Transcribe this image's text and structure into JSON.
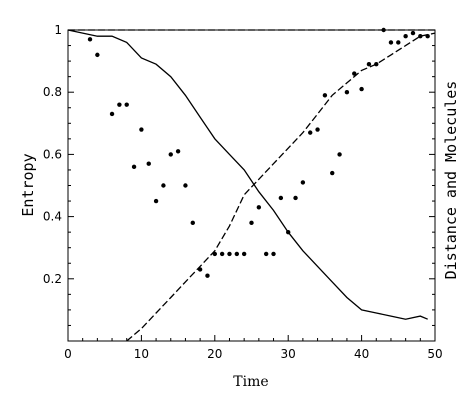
{
  "chart_data": {
    "type": "line",
    "xlabel": "Time",
    "ylabel": "Entropy",
    "ylabel_right": "Distance and Molecules",
    "xlim": [
      0,
      50
    ],
    "ylim": [
      0,
      1
    ],
    "xticks": [
      0,
      10,
      20,
      30,
      40,
      50
    ],
    "yticks": [
      0.2,
      0.4,
      0.6,
      0.8,
      1
    ],
    "ytick_labels": [
      "0.2",
      "0.4",
      "0.6",
      "0.8",
      "1"
    ],
    "grid": false,
    "series": [
      {
        "style": "solid",
        "x": [
          0,
          2,
          4,
          6,
          8,
          10,
          12,
          14,
          16,
          18,
          20,
          22,
          24,
          26,
          28,
          30,
          32,
          34,
          36,
          38,
          40,
          42,
          44,
          46,
          48,
          49
        ],
        "y": [
          1.0,
          0.99,
          0.98,
          0.98,
          0.96,
          0.91,
          0.89,
          0.85,
          0.79,
          0.72,
          0.65,
          0.6,
          0.55,
          0.48,
          0.42,
          0.35,
          0.29,
          0.24,
          0.19,
          0.14,
          0.1,
          0.09,
          0.08,
          0.07,
          0.08,
          0.07
        ]
      },
      {
        "style": "dashed",
        "x": [
          0,
          4,
          8,
          10,
          12,
          14,
          16,
          18,
          20,
          22,
          24,
          26,
          28,
          30,
          32,
          34,
          36,
          38,
          40,
          42,
          44,
          46,
          48,
          50
        ],
        "y": [
          1.0,
          1.0,
          1.0,
          1.0,
          1.0,
          1.0,
          1.0,
          1.0,
          1.0,
          1.0,
          1.0,
          1.0,
          1.0,
          1.0,
          1.0,
          1.0,
          1.0,
          1.0,
          1.0,
          1.0,
          1.0,
          1.0,
          1.0,
          1.0
        ]
      },
      {
        "style": "dashed",
        "x": [
          8,
          10,
          12,
          14,
          16,
          18,
          20,
          22,
          24,
          26,
          28,
          30,
          32,
          34,
          36,
          38,
          40,
          42,
          44,
          46,
          48,
          50
        ],
        "y": [
          0.0,
          0.04,
          0.09,
          0.14,
          0.19,
          0.24,
          0.29,
          0.37,
          0.47,
          0.52,
          0.57,
          0.62,
          0.67,
          0.73,
          0.79,
          0.83,
          0.87,
          0.89,
          0.92,
          0.95,
          0.98,
          0.99
        ]
      },
      {
        "style": "points",
        "x": [
          3,
          4,
          6,
          7,
          8,
          9,
          10,
          11,
          12,
          13,
          14,
          15,
          16,
          17,
          18,
          19,
          20,
          21,
          22,
          23,
          24,
          25,
          26,
          27,
          28,
          29,
          30,
          31,
          32,
          33,
          34,
          35,
          36,
          37,
          38,
          39,
          40,
          41,
          42,
          43,
          44,
          45,
          46,
          47,
          48,
          49
        ],
        "y": [
          0.97,
          0.92,
          0.73,
          0.76,
          0.76,
          0.56,
          0.68,
          0.57,
          0.45,
          0.5,
          0.6,
          0.61,
          0.5,
          0.38,
          0.23,
          0.21,
          0.28,
          0.28,
          0.28,
          0.28,
          0.28,
          0.38,
          0.43,
          0.28,
          0.28,
          0.46,
          0.35,
          0.46,
          0.51,
          0.67,
          0.68,
          0.79,
          0.54,
          0.6,
          0.8,
          0.86,
          0.81,
          0.89,
          0.89,
          1.0,
          0.96,
          0.96,
          0.98,
          0.99,
          0.98,
          0.98
        ]
      }
    ]
  }
}
